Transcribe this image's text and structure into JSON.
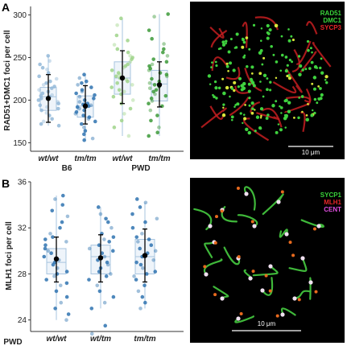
{
  "panels": [
    {
      "letter": "A"
    },
    {
      "letter": "B"
    }
  ],
  "chart_data": [
    {
      "type": "scatter",
      "ylabel": "RAD51+DMC1 foci per cell",
      "ylim": [
        140,
        310
      ],
      "yticks": [
        150,
        200,
        250,
        300
      ],
      "categories": [
        "wt/wt",
        "tm/tm",
        "wt/wt",
        "tm/tm"
      ],
      "strain_labels": [
        {
          "text": "B6",
          "after_category": 1
        },
        {
          "text": "PWD",
          "after_category": 3
        }
      ],
      "colors": [
        "#93b8d8",
        "#2f73b0",
        "#9fd48a",
        "#3c9a38"
      ],
      "series": [
        {
          "category": "wt/wt",
          "mean": 202,
          "sd_low": 174,
          "sd_high": 230,
          "q1": 188,
          "median": 204,
          "q3": 215,
          "whisker_low": 170,
          "whisker_high": 252,
          "values": [
            252,
            246,
            242,
            238,
            236,
            232,
            228,
            225,
            222,
            220,
            218,
            216,
            214,
            212,
            210,
            208,
            206,
            205,
            204,
            203,
            202,
            200,
            198,
            196,
            194,
            192,
            190,
            188,
            185,
            182,
            178,
            175,
            172,
            170
          ]
        },
        {
          "category": "tm/tm",
          "mean": 193,
          "sd_low": 172,
          "sd_high": 217,
          "q1": 180,
          "median": 193,
          "q3": 205,
          "whisker_low": 153,
          "whisker_high": 230,
          "values": [
            230,
            226,
            222,
            220,
            218,
            215,
            212,
            210,
            208,
            206,
            204,
            202,
            200,
            198,
            196,
            195,
            194,
            193,
            192,
            190,
            188,
            186,
            184,
            182,
            180,
            178,
            175,
            172,
            168,
            164,
            160,
            155,
            153
          ]
        },
        {
          "category": "wt/wt",
          "mean": 226,
          "sd_low": 196,
          "sd_high": 258,
          "q1": 207,
          "median": 226,
          "q3": 245,
          "whisker_low": 158,
          "whisker_high": 296,
          "values": [
            296,
            288,
            276,
            270,
            265,
            260,
            256,
            252,
            250,
            248,
            245,
            242,
            240,
            238,
            235,
            232,
            230,
            228,
            226,
            224,
            222,
            220,
            218,
            215,
            212,
            210,
            207,
            204,
            200,
            196,
            190,
            184,
            176,
            168,
            158
          ]
        },
        {
          "category": "tm/tm",
          "mean": 218,
          "sd_low": 192,
          "sd_high": 245,
          "q1": 199,
          "median": 219,
          "q3": 235,
          "whisker_low": 158,
          "whisker_high": 301,
          "values": [
            301,
            298,
            282,
            272,
            266,
            260,
            256,
            252,
            248,
            245,
            242,
            240,
            237,
            235,
            232,
            230,
            228,
            225,
            222,
            220,
            218,
            216,
            214,
            212,
            210,
            207,
            205,
            202,
            199,
            196,
            193,
            188,
            182,
            176,
            168,
            162,
            158
          ]
        }
      ]
    },
    {
      "type": "scatter",
      "ylabel": "MLH1 foci per cell",
      "ylim": [
        23,
        36
      ],
      "yticks": [
        24,
        28,
        32,
        36
      ],
      "categories": [
        "wt/wt",
        "wt/tm",
        "tm/tm"
      ],
      "strain_labels": [
        {
          "text": "PWD",
          "after_category": -1
        }
      ],
      "colors": [
        "#2f73b0",
        "#2f73b0",
        "#2f73b0"
      ],
      "series": [
        {
          "category": "wt/wt",
          "mean": 29.3,
          "sd_low": 27.3,
          "sd_high": 31.2,
          "q1": 28.0,
          "median": 29.0,
          "q3": 30.2,
          "whisker_low": 24.0,
          "whisker_high": 34.8,
          "values": [
            34.8,
            34.5,
            34.0,
            33.5,
            33.0,
            32.5,
            32.0,
            31.5,
            31.2,
            31.0,
            30.8,
            30.5,
            30.2,
            30.0,
            29.8,
            29.5,
            29.2,
            29.0,
            28.8,
            28.5,
            28.2,
            28.0,
            27.8,
            27.5,
            27.2,
            27.0,
            26.5,
            26.0,
            25.5,
            25.0,
            24.5,
            24.0
          ]
        },
        {
          "category": "wt/tm",
          "mean": 29.4,
          "sd_low": 27.3,
          "sd_high": 31.4,
          "q1": 28.0,
          "median": 29.5,
          "q3": 30.5,
          "whisker_low": 25.0,
          "whisker_high": 33.8,
          "values": [
            33.8,
            33.2,
            32.8,
            32.5,
            32.0,
            31.5,
            31.2,
            31.0,
            30.8,
            30.5,
            30.2,
            30.0,
            29.8,
            29.5,
            29.2,
            29.0,
            28.8,
            28.5,
            28.2,
            28.0,
            27.8,
            27.5,
            27.0,
            26.5,
            26.0,
            25.5,
            25.0,
            23.5,
            22.8
          ]
        },
        {
          "category": "tm/tm",
          "mean": 29.6,
          "sd_low": 27.3,
          "sd_high": 31.9,
          "q1": 28.0,
          "median": 29.5,
          "q3": 31.0,
          "whisker_low": 25.0,
          "whisker_high": 34.2,
          "values": [
            34.5,
            34.2,
            33.8,
            33.2,
            32.8,
            32.5,
            32.0,
            31.5,
            31.2,
            31.0,
            30.8,
            30.5,
            30.2,
            30.0,
            29.8,
            29.5,
            29.2,
            29.0,
            28.8,
            28.5,
            28.2,
            28.0,
            27.8,
            27.5,
            27.0,
            26.5,
            26.0,
            25.5,
            25.0
          ]
        }
      ]
    }
  ],
  "micrographs": [
    {
      "legend": [
        {
          "label": "RAD51",
          "color": "#39d33a"
        },
        {
          "label": "DMC1",
          "color": "#39d33a"
        },
        {
          "label": "SYCP3",
          "color": "#e8262a"
        }
      ],
      "scale_bar": "10 μm"
    },
    {
      "legend": [
        {
          "label": "SYCP1",
          "color": "#39d33a"
        },
        {
          "label": "MLH1",
          "color": "#e8262a"
        },
        {
          "label": "CENT",
          "color": "#e04ee0"
        }
      ],
      "scale_bar": "10 μm"
    }
  ]
}
